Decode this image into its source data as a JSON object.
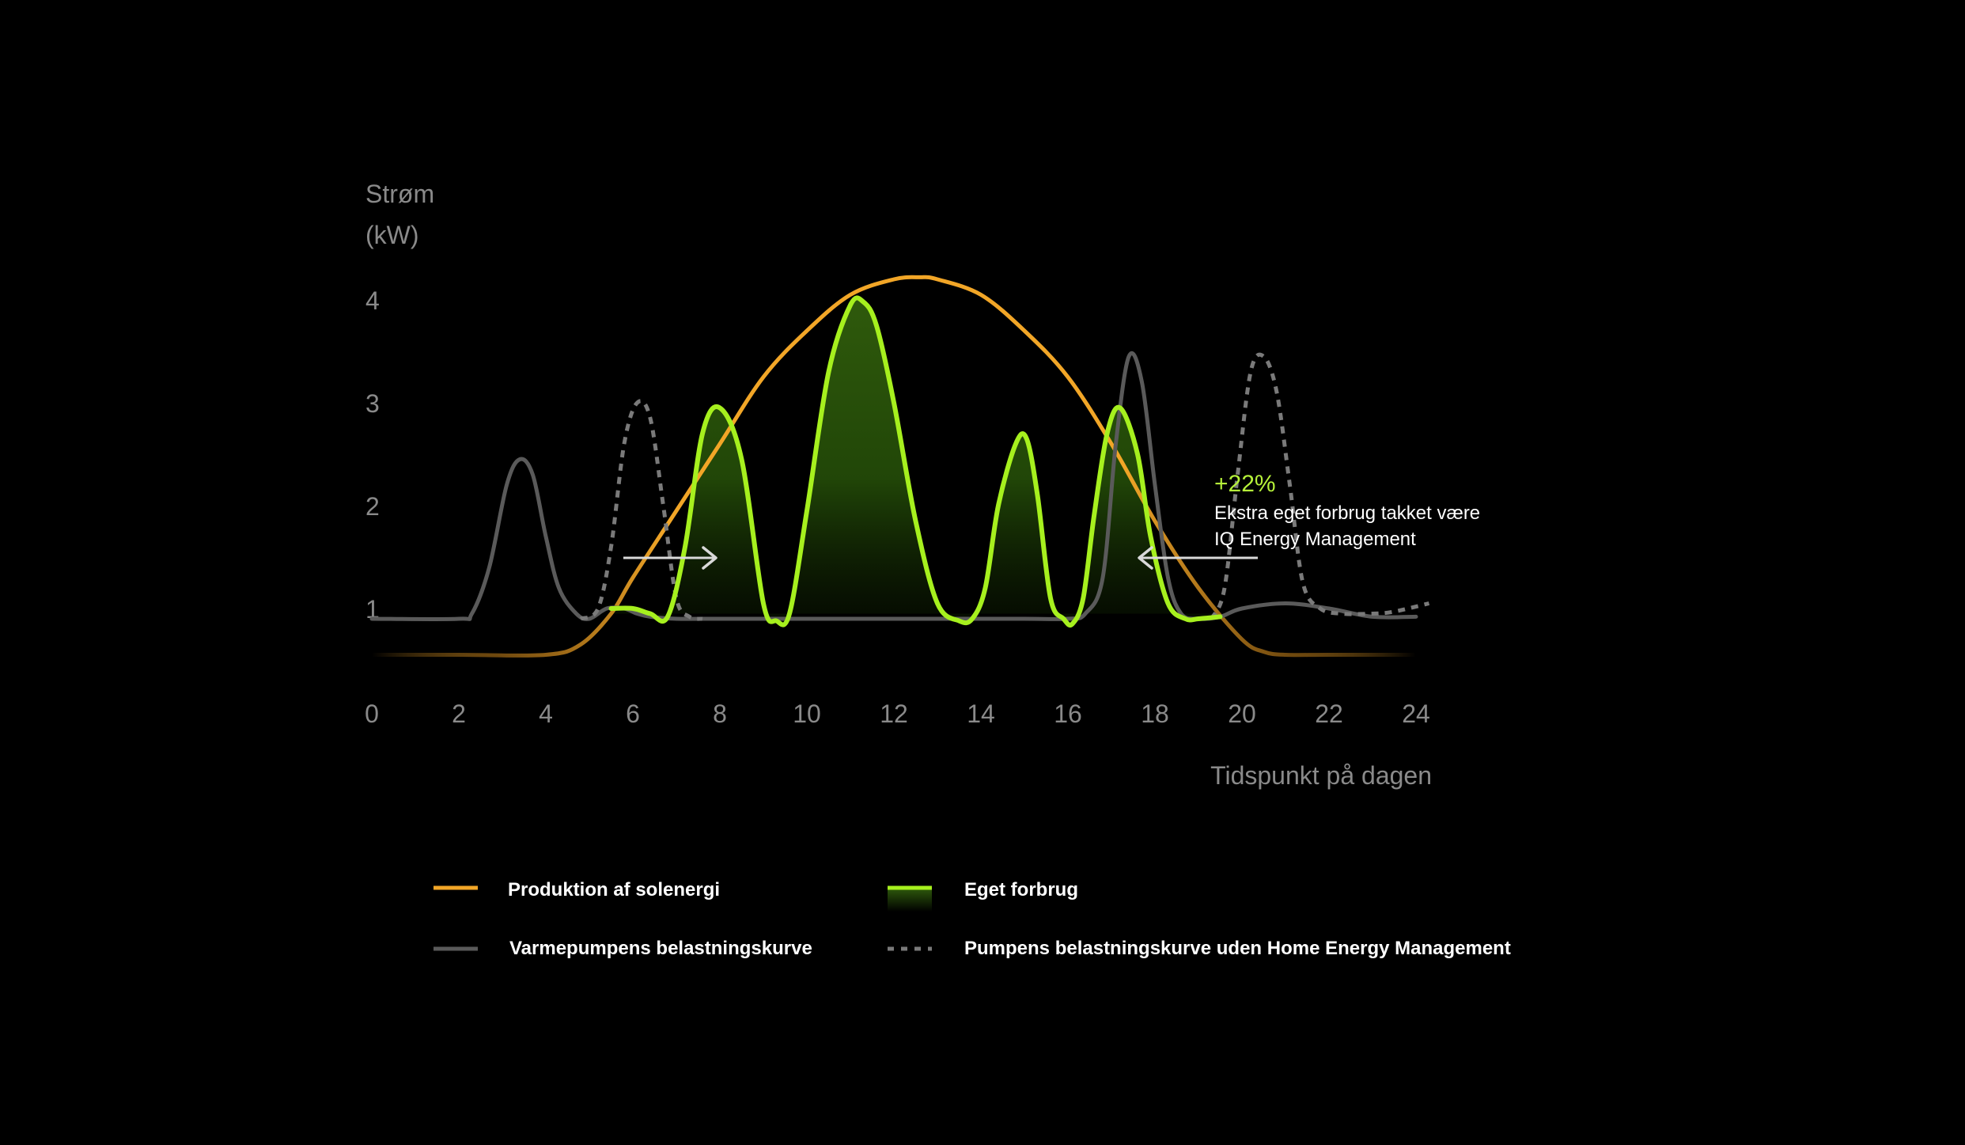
{
  "chart_data": {
    "type": "line",
    "ylabel_line1": "Strøm",
    "ylabel_line2": "(kW)",
    "xlabel": "Tidspunkt på dagen",
    "x_ticks": [
      "0",
      "2",
      "4",
      "6",
      "8",
      "10",
      "12",
      "14",
      "16",
      "18",
      "20",
      "22",
      "24"
    ],
    "y_ticks": [
      "1",
      "2",
      "3",
      "4"
    ],
    "xlim": [
      0,
      24
    ],
    "colors": {
      "solar": "#f2a627",
      "own": "#a6f01e",
      "pump": "#5a5a5a",
      "pump_noham": "#7a7a7a",
      "arrow": "#d9d9d9"
    },
    "series": [
      {
        "name": "Produktion af solenergi",
        "key": "solar",
        "x": [
          0,
          2,
          4,
          4.8,
          5.5,
          6,
          7,
          8,
          9,
          10,
          11,
          12,
          12.6,
          13,
          14,
          15,
          16,
          17,
          18,
          19,
          20,
          20.5,
          21,
          22,
          24
        ],
        "y": [
          0.55,
          0.55,
          0.55,
          0.65,
          0.95,
          1.3,
          1.95,
          2.6,
          3.25,
          3.7,
          4.05,
          4.2,
          4.22,
          4.2,
          4.05,
          3.7,
          3.25,
          2.6,
          1.85,
          1.2,
          0.7,
          0.58,
          0.55,
          0.55,
          0.55
        ]
      },
      {
        "name": "Eget forbrug",
        "key": "own",
        "x": [
          5.5,
          6,
          6.4,
          6.8,
          7.2,
          7.6,
          8.0,
          8.5,
          9.0,
          9.3,
          9.6,
          10.0,
          10.5,
          11.0,
          11.3,
          11.6,
          12.0,
          12.5,
          13.0,
          13.5,
          13.8,
          14.1,
          14.4,
          14.8,
          15.05,
          15.3,
          15.6,
          15.9,
          16.1,
          16.35,
          16.6,
          16.9,
          17.2,
          17.6,
          17.9,
          18.3,
          18.7,
          19.0,
          19.5
        ],
        "y": [
          1.0,
          1.0,
          0.95,
          0.92,
          1.6,
          2.7,
          2.95,
          2.45,
          1.05,
          0.88,
          0.95,
          1.95,
          3.3,
          3.95,
          3.98,
          3.75,
          3.0,
          1.85,
          1.05,
          0.88,
          0.9,
          1.2,
          2.0,
          2.6,
          2.65,
          2.1,
          1.1,
          0.9,
          0.85,
          1.1,
          1.9,
          2.7,
          2.95,
          2.5,
          1.7,
          1.05,
          0.9,
          0.9,
          0.92
        ]
      },
      {
        "name": "Varmepumpens belastningskurve",
        "key": "pump",
        "x": [
          0,
          2,
          2.3,
          2.7,
          3.1,
          3.4,
          3.7,
          4.0,
          4.3,
          4.7,
          5.0,
          5.4,
          5.8,
          6.1,
          6.4,
          7.0,
          8.0,
          12.0,
          15.0,
          16.0,
          16.4,
          16.8,
          17.1,
          17.4,
          17.7,
          18.0,
          18.3,
          18.6,
          19.0,
          19.5,
          20.0,
          21.0,
          22.0,
          23.0,
          24.0
        ],
        "y": [
          0.9,
          0.9,
          0.95,
          1.4,
          2.2,
          2.45,
          2.3,
          1.7,
          1.2,
          0.95,
          0.9,
          1.0,
          1.0,
          0.95,
          0.92,
          0.9,
          0.9,
          0.9,
          0.9,
          0.9,
          0.95,
          1.3,
          2.6,
          3.45,
          3.2,
          2.2,
          1.3,
          0.95,
          0.9,
          0.92,
          1.0,
          1.05,
          1.0,
          0.92,
          0.92
        ]
      },
      {
        "name": "Pumpens belastningskurve uden Home Energy Management",
        "key": "pump_noham",
        "x": [
          4.8,
          5.2,
          5.5,
          5.8,
          6.1,
          6.4,
          6.7,
          7.0,
          7.3,
          7.6
        ],
        "y": [
          0.9,
          1.0,
          1.6,
          2.6,
          3.0,
          2.85,
          2.0,
          1.1,
          0.92,
          0.9
        ]
      },
      {
        "name": "Pumpens belastningskurve uden Home Energy Management (aften)",
        "key": "pump_noham",
        "x": [
          19.3,
          19.6,
          19.9,
          20.2,
          20.5,
          20.8,
          21.1,
          21.4,
          21.8,
          22.3,
          23.0,
          23.5,
          24.3
        ],
        "y": [
          0.9,
          1.2,
          2.3,
          3.3,
          3.45,
          3.1,
          2.2,
          1.25,
          1.0,
          0.95,
          0.95,
          0.97,
          1.05
        ]
      }
    ],
    "annotation": {
      "value": "+22%",
      "line1": "Ekstra eget forbrug takket være",
      "line2": "IQ Energy Management"
    },
    "legend": [
      {
        "label": "Produktion af solenergi",
        "style": "solid-orange"
      },
      {
        "label": "Eget forbrug",
        "style": "green-gradient"
      },
      {
        "label": "Varmepumpens belastningskurve",
        "style": "solid-gray"
      },
      {
        "label": "Pumpens belastningskurve uden Home Energy Management",
        "style": "dashed-gray"
      }
    ]
  }
}
